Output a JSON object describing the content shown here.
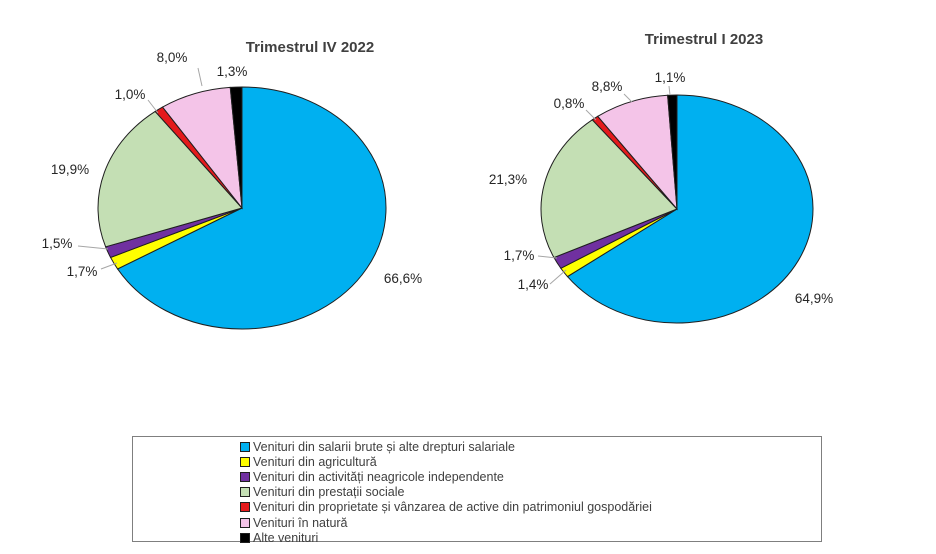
{
  "chart_data": [
    {
      "type": "pie",
      "title": "Trimestrul IV 2022",
      "categories": [
        "Venituri din salarii brute și alte drepturi salariale",
        "Venituri din agricultură",
        "Venituri din activități neagricole independente",
        "Venituri din prestații sociale",
        "Venituri din proprietate și vânzarea de active din patrimoniul gospodăriei",
        "Venituri în natură",
        "Alte venituri"
      ],
      "values": [
        66.6,
        1.7,
        1.5,
        19.9,
        1.0,
        8.0,
        1.3
      ],
      "labels": [
        "66,6%",
        "1,7%",
        "1,5%",
        "19,9%",
        "1,0%",
        "8,0%",
        "1,3%"
      ]
    },
    {
      "type": "pie",
      "title": "Trimestrul I 2023",
      "categories": [
        "Venituri din salarii brute și alte drepturi salariale",
        "Venituri din agricultură",
        "Venituri din activități neagricole independente",
        "Venituri din prestații sociale",
        "Venituri din proprietate și vânzarea de active din patrimoniul gospodăriei",
        "Venituri în natură",
        "Alte venituri"
      ],
      "values": [
        64.9,
        1.4,
        1.7,
        21.3,
        0.8,
        8.8,
        1.1
      ],
      "labels": [
        "64,9%",
        "1,4%",
        "1,7%",
        "21,3%",
        "0,8%",
        "8,8%",
        "1,1%"
      ]
    }
  ],
  "legend": {
    "items": [
      {
        "label": "Venituri din salarii brute și alte drepturi salariale",
        "color": "#00b0f0"
      },
      {
        "label": "Venituri din agricultură",
        "color": "#ffff00"
      },
      {
        "label": "Venituri din activități neagricole independente",
        "color": "#7030a0"
      },
      {
        "label": "Venituri din prestații sociale",
        "color": "#c4dfb4"
      },
      {
        "label": "Venituri din proprietate și vânzarea de active din patrimoniul gospodăriei",
        "color": "#e41a1c"
      },
      {
        "label": "Venituri în natură",
        "color": "#f4c4e8"
      },
      {
        "label": "Alte venituri",
        "color": "#000000"
      }
    ]
  }
}
